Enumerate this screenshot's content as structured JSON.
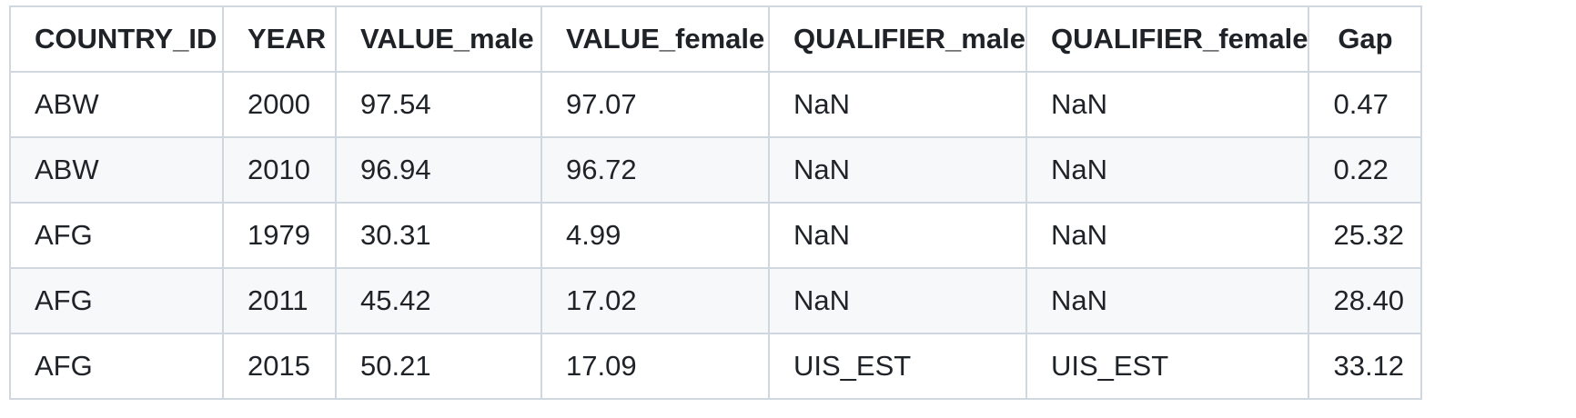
{
  "table": {
    "columns": [
      "COUNTRY_ID",
      "YEAR",
      "VALUE_male",
      "VALUE_female",
      "QUALIFIER_male",
      "QUALIFIER_female",
      "Gap"
    ],
    "rows": [
      [
        "ABW",
        "2000",
        "97.54",
        "97.07",
        "NaN",
        "NaN",
        "0.47"
      ],
      [
        "ABW",
        "2010",
        "96.94",
        "96.72",
        "NaN",
        "NaN",
        "0.22"
      ],
      [
        "AFG",
        "1979",
        "30.31",
        "4.99",
        "NaN",
        "NaN",
        "25.32"
      ],
      [
        "AFG",
        "2011",
        "45.42",
        "17.02",
        "NaN",
        "NaN",
        "28.40"
      ],
      [
        "AFG",
        "2015",
        "50.21",
        "17.09",
        "UIS_EST",
        "UIS_EST",
        "33.12"
      ]
    ]
  },
  "colors": {
    "border": "#d0d7de",
    "alt_row": "#f6f8fa",
    "text": "#1f2328"
  }
}
